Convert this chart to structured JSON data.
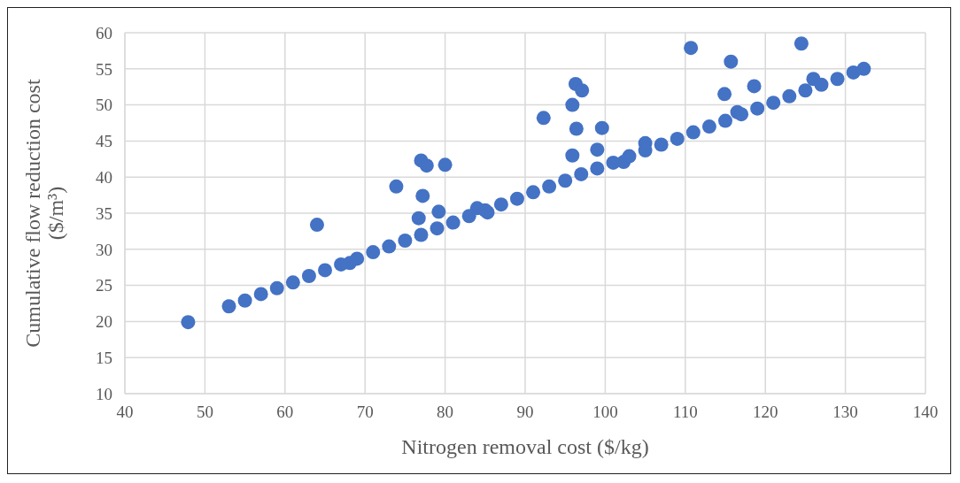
{
  "chart_data": {
    "type": "scatter",
    "xlabel": "Nitrogen removal cost ($/kg)",
    "ylabel": "Cumulative flow reduction cost ($/m³)",
    "xlim": [
      40,
      140
    ],
    "xticks": [
      40,
      50,
      60,
      70,
      80,
      90,
      100,
      110,
      120,
      130,
      140
    ],
    "ylim": [
      10,
      60
    ],
    "yticks": [
      10,
      15,
      20,
      25,
      30,
      35,
      40,
      45,
      50,
      55,
      60
    ],
    "grid": true,
    "legend": false,
    "marker": "circle",
    "series": [
      {
        "color": "#4472c4",
        "x": [
          47.9,
          64.0,
          73.9,
          77.0,
          77.7,
          77.2,
          76.7,
          79.2,
          80.0,
          92.3,
          95.9,
          96.3,
          97.1,
          96.4,
          99.6,
          95.9,
          99.0,
          110.7,
          115.7,
          114.9,
          118.6,
          124.5,
          68.1,
          84.0,
          85.3,
          102.3,
          105.0,
          116.5,
          126.0,
          53,
          55,
          57,
          59,
          61,
          63,
          65,
          67,
          69,
          71,
          73,
          75,
          77,
          79,
          81,
          83,
          85,
          87,
          89,
          91,
          93,
          95,
          97,
          99,
          101,
          103,
          105,
          107,
          109,
          111,
          113,
          115,
          117,
          119,
          121,
          123,
          125,
          127,
          129,
          131,
          132.3
        ],
        "values": [
          19.9,
          33.4,
          38.7,
          42.3,
          41.6,
          37.4,
          34.3,
          35.2,
          41.7,
          48.2,
          50.0,
          52.9,
          52.0,
          46.7,
          46.8,
          43.0,
          43.8,
          57.9,
          56.0,
          51.5,
          52.6,
          58.5,
          28.1,
          35.7,
          35.1,
          42.1,
          44.7,
          49.0,
          53.6,
          22.1,
          22.9,
          23.8,
          24.6,
          25.4,
          26.3,
          27.1,
          27.9,
          28.7,
          29.6,
          30.4,
          31.2,
          32.0,
          32.9,
          33.7,
          34.6,
          35.4,
          36.2,
          37.0,
          37.9,
          38.7,
          39.5,
          40.4,
          41.2,
          42.0,
          42.9,
          43.7,
          44.5,
          45.3,
          46.2,
          47.0,
          47.8,
          48.7,
          49.5,
          50.3,
          51.2,
          52.0,
          52.8,
          53.6,
          54.5,
          55.0
        ]
      }
    ]
  }
}
